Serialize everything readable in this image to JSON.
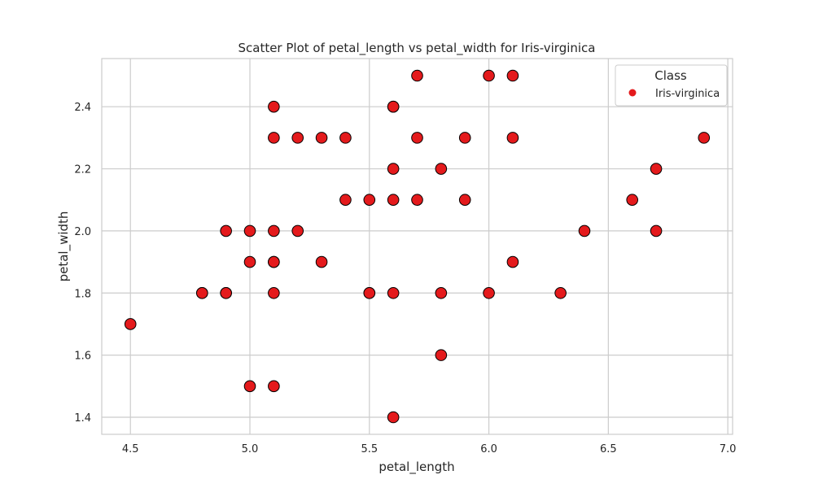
{
  "chart_data": {
    "type": "scatter",
    "title": "Scatter Plot of petal_length vs petal_width for Iris-virginica",
    "xlabel": "petal_length",
    "ylabel": "petal_width",
    "xlim": [
      4.38,
      7.02
    ],
    "ylim": [
      1.345,
      2.555
    ],
    "xticks": [
      "4.5",
      "5.0",
      "5.5",
      "6.0",
      "6.5",
      "7.0"
    ],
    "yticks": [
      "1.4",
      "1.6",
      "1.8",
      "2.0",
      "2.2",
      "2.4"
    ],
    "grid": true,
    "legend": {
      "title": "Class",
      "position": "top-right"
    },
    "colors": {
      "marker": "#e41a1c",
      "edge": "#000000",
      "grid": "#cccccc",
      "axes": "#cccccc"
    },
    "series": [
      {
        "name": "Iris-virginica",
        "points": [
          [
            6.0,
            2.5
          ],
          [
            5.1,
            1.9
          ],
          [
            5.9,
            2.1
          ],
          [
            5.6,
            1.8
          ],
          [
            5.8,
            2.2
          ],
          [
            6.6,
            2.1
          ],
          [
            4.5,
            1.7
          ],
          [
            6.3,
            1.8
          ],
          [
            5.8,
            1.8
          ],
          [
            6.1,
            2.5
          ],
          [
            5.1,
            2.0
          ],
          [
            5.3,
            1.9
          ],
          [
            5.5,
            2.1
          ],
          [
            5.0,
            2.0
          ],
          [
            5.1,
            2.4
          ],
          [
            5.3,
            2.3
          ],
          [
            5.5,
            1.8
          ],
          [
            6.7,
            2.2
          ],
          [
            6.9,
            2.3
          ],
          [
            5.0,
            1.5
          ],
          [
            5.7,
            2.3
          ],
          [
            4.9,
            2.0
          ],
          [
            6.7,
            2.0
          ],
          [
            4.9,
            1.8
          ],
          [
            5.7,
            2.1
          ],
          [
            6.0,
            1.8
          ],
          [
            4.8,
            1.8
          ],
          [
            4.9,
            1.8
          ],
          [
            5.6,
            2.1
          ],
          [
            5.8,
            1.6
          ],
          [
            6.1,
            1.9
          ],
          [
            6.4,
            2.0
          ],
          [
            5.6,
            2.2
          ],
          [
            5.1,
            1.5
          ],
          [
            5.6,
            1.4
          ],
          [
            6.1,
            2.3
          ],
          [
            5.6,
            2.4
          ],
          [
            5.5,
            1.8
          ],
          [
            4.8,
            1.8
          ],
          [
            5.4,
            2.1
          ],
          [
            5.6,
            2.4
          ],
          [
            5.1,
            2.3
          ],
          [
            5.1,
            1.9
          ],
          [
            5.9,
            2.3
          ],
          [
            5.7,
            2.5
          ],
          [
            5.2,
            2.3
          ],
          [
            5.0,
            1.9
          ],
          [
            5.2,
            2.0
          ],
          [
            5.4,
            2.3
          ],
          [
            5.1,
            1.8
          ]
        ]
      }
    ]
  }
}
